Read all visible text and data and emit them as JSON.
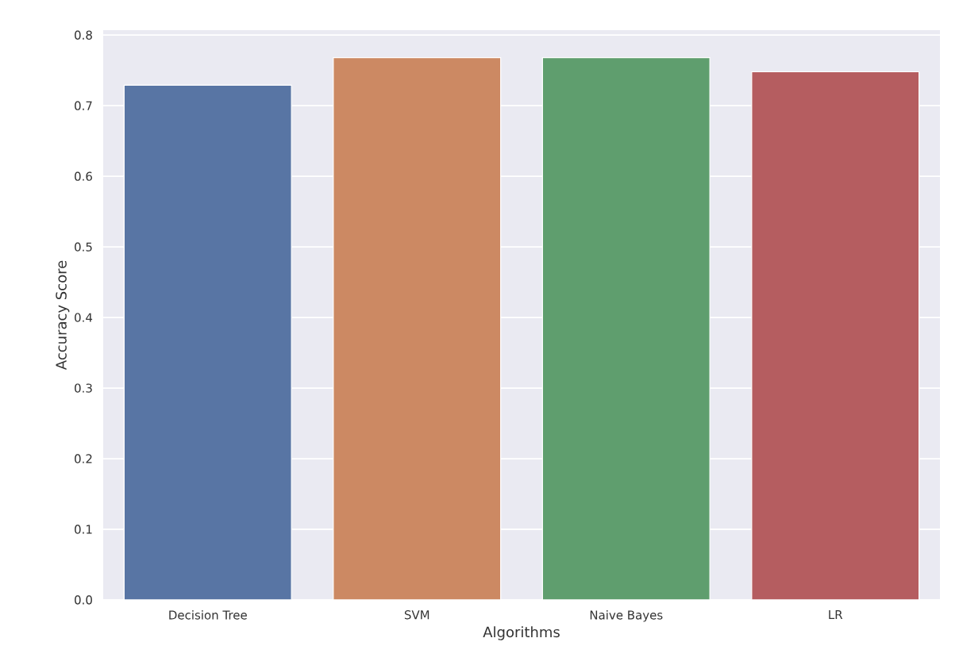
{
  "chart_data": {
    "type": "bar",
    "xlabel": "Algorithms",
    "ylabel": "Accuracy Score",
    "categories": [
      "Decision Tree",
      "SVM",
      "Naive Bayes",
      "LR"
    ],
    "values": [
      0.729,
      0.768,
      0.768,
      0.748
    ],
    "colors": [
      "#5875a4",
      "#cc8963",
      "#5f9e6e",
      "#b55d60"
    ],
    "ylim": [
      0,
      0.807
    ],
    "yticks": [
      {
        "value": 0,
        "label": "0.0"
      },
      {
        "value": 0.1,
        "label": "0.1"
      },
      {
        "value": 0.2,
        "label": "0.2"
      },
      {
        "value": 0.3,
        "label": "0.3"
      },
      {
        "value": 0.4,
        "label": "0.4"
      },
      {
        "value": 0.5,
        "label": "0.5"
      },
      {
        "value": 0.6,
        "label": "0.6"
      },
      {
        "value": 0.7,
        "label": "0.7"
      },
      {
        "value": 0.8,
        "label": "0.8"
      }
    ],
    "grid": "y"
  }
}
